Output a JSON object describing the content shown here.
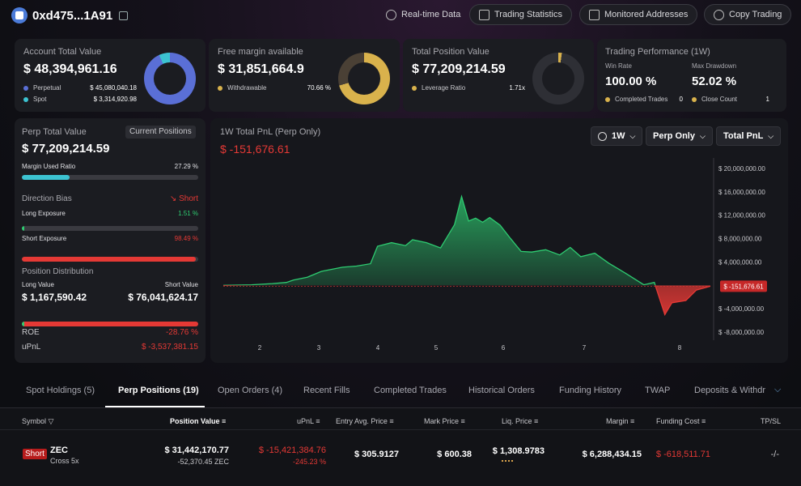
{
  "header": {
    "address": "0xd475...1A91",
    "buttons": [
      "Real-time Data",
      "Trading Statistics",
      "Monitored Addresses",
      "Copy Trading"
    ]
  },
  "cards": {
    "account": {
      "label": "Account Total Value",
      "value": "$ 48,394,961.16",
      "rows": [
        {
          "name": "Perpetual",
          "value": "$ 45,080,040.18"
        },
        {
          "name": "Spot",
          "value": "$ 3,314,920.98"
        }
      ],
      "perp_share": 0.9315
    },
    "margin": {
      "label": "Free margin available",
      "value": "$ 31,851,664.9",
      "row_name": "Withdrawable",
      "row_value": "70.66 %",
      "fraction": 0.7066
    },
    "position": {
      "label": "Total Position Value",
      "value": "$ 77,209,214.59",
      "row_name": "Leverage Ratio",
      "row_value": "1.71x"
    },
    "performance": {
      "label": "Trading Performance (1W)",
      "win_rate_label": "Win Rate",
      "win_rate": "100.00 %",
      "drawdown_label": "Max Drawdown",
      "drawdown": "52.02 %",
      "completed_label": "Completed Trades",
      "completed": "0",
      "close_label": "Close Count",
      "close": "1"
    }
  },
  "perp": {
    "label": "Perp Total Value",
    "button": "Current Positions",
    "value": "$ 77,209,214.59",
    "margin_used_label": "Margin Used Ratio",
    "margin_used": "27.29 %",
    "margin_used_fraction": 0.2729,
    "bias_label": "Direction Bias",
    "bias": "Short",
    "long_label": "Long Exposure",
    "long_value": "1.51 %",
    "long_fraction": 0.0151,
    "short_label": "Short Exposure",
    "short_value": "98.49 %",
    "short_fraction": 0.9849,
    "dist_label": "Position Distribution",
    "long_value_label": "Long Value",
    "short_value_label": "Short Value",
    "long_amount": "$ 1,167,590.42",
    "short_amount": "$ 76,041,624.17",
    "roe_label": "ROE",
    "roe": "-28.76 %",
    "upnl_label": "uPnL",
    "upnl": "$ -3,537,381.15"
  },
  "chart_panel": {
    "title": "1W Total PnL (Perp Only)",
    "current": "$ -151,676.61",
    "period": "1W",
    "filter": "Perp Only",
    "metric": "Total PnL"
  },
  "chart_data": {
    "type": "area",
    "title": "1W Total PnL (Perp Only)",
    "ylim": [
      -9000000,
      22000000
    ],
    "yticks": [
      20000000,
      16000000,
      12000000,
      8000000,
      4000000,
      -4000000,
      -8000000
    ],
    "ytick_labels": [
      "$ 20,000,000.00",
      "$ 16,000,000.00",
      "$ 12,000,000.00",
      "$ 8,000,000.00",
      "$ 4,000,000.00",
      "$ -4,000,000.00",
      "$ -8,000,000.00"
    ],
    "xticks": [
      "2",
      "3",
      "4",
      "5",
      "6",
      "7",
      "8"
    ],
    "last_value_label": "$ -151,676.61",
    "points": [
      [
        1.6,
        0
      ],
      [
        2.0,
        0.1
      ],
      [
        2.3,
        0.3
      ],
      [
        2.5,
        0.5
      ],
      [
        2.6,
        0.9
      ],
      [
        2.8,
        1.4
      ],
      [
        3.0,
        2.4
      ],
      [
        3.3,
        3.1
      ],
      [
        3.5,
        3.3
      ],
      [
        3.7,
        3.7
      ],
      [
        3.8,
        6.7
      ],
      [
        4.0,
        7.3
      ],
      [
        4.2,
        6.8
      ],
      [
        4.3,
        7.8
      ],
      [
        4.5,
        7.3
      ],
      [
        4.7,
        6.4
      ],
      [
        4.9,
        10.4
      ],
      [
        5.0,
        15.2
      ],
      [
        5.1,
        11.0
      ],
      [
        5.2,
        11.5
      ],
      [
        5.3,
        10.8
      ],
      [
        5.4,
        11.6
      ],
      [
        5.55,
        10.3
      ],
      [
        5.7,
        8.0
      ],
      [
        5.85,
        5.8
      ],
      [
        6.0,
        5.7
      ],
      [
        6.2,
        6.1
      ],
      [
        6.4,
        5.2
      ],
      [
        6.55,
        6.5
      ],
      [
        6.7,
        4.9
      ],
      [
        6.9,
        5.5
      ],
      [
        7.1,
        3.8
      ],
      [
        7.35,
        2.0
      ],
      [
        7.6,
        0.1
      ],
      [
        7.75,
        0.5
      ],
      [
        7.9,
        -5.0
      ],
      [
        8.0,
        -3.0
      ],
      [
        8.2,
        -2.6
      ],
      [
        8.35,
        -0.8
      ],
      [
        8.55,
        -0.15
      ]
    ],
    "point_units": "x in day index, y in $M"
  },
  "tabs": [
    "Spot Holdings (5)",
    "Perp Positions (19)",
    "Open Orders (4)",
    "Recent Fills",
    "Completed Trades",
    "Historical Orders",
    "Funding History",
    "TWAP",
    "Deposits & Withdra"
  ],
  "table": {
    "headers": [
      "Symbol",
      "Position Value",
      "uPnL",
      "Entry Avg. Price",
      "Mark Price",
      "Liq. Price",
      "Margin",
      "Funding Cost",
      "TP/SL"
    ],
    "row": {
      "side": "Short",
      "symbol": "ZEC",
      "mode": "Cross 5x",
      "position_value": "$ 31,442,170.77",
      "position_size": "-52,370.45 ZEC",
      "upnl": "$ -15,421,384.76",
      "upnl_pct": "-245.23 %",
      "entry": "$ 305.9127",
      "mark": "$ 600.38",
      "liq": "$ 1,308.9783",
      "margin": "$ 6,288,434.15",
      "funding": "$ -618,511.71",
      "tpsl": "-/-"
    }
  },
  "colors": {
    "accent_green": "#2ecc71",
    "red": "#e53935",
    "teal": "#3cc3d1",
    "ring_blue": "#5a6fd6",
    "ring_gold": "#d9b24c"
  }
}
